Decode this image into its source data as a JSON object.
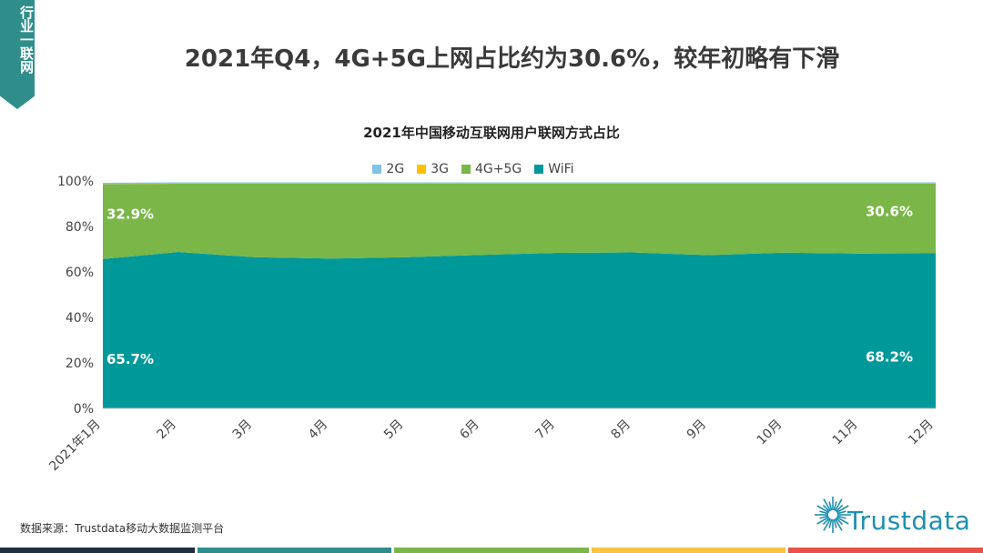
{
  "side_tag": {
    "text": "行业一联网",
    "color": "#2f8e8b"
  },
  "headline": "2021年Q4，4G+5G上网占比约为30.6%，较年初略有下滑",
  "chart_data": {
    "type": "area",
    "stacked": true,
    "title": "2021年中国移动互联网用户联网方式占比",
    "categories": [
      "2021年1月",
      "2月",
      "3月",
      "4月",
      "5月",
      "6月",
      "7月",
      "8月",
      "9月",
      "10月",
      "11月",
      "12月"
    ],
    "series": [
      {
        "name": "WiFi",
        "color": "#00999a",
        "values": [
          65.7,
          68.8,
          66.5,
          65.9,
          66.5,
          67.5,
          68.4,
          68.6,
          67.4,
          68.5,
          68.1,
          68.2
        ]
      },
      {
        "name": "4G+5G",
        "color": "#7ab648",
        "values": [
          32.9,
          30.0,
          32.3,
          32.9,
          32.3,
          31.3,
          30.4,
          30.2,
          31.4,
          30.3,
          30.7,
          30.6
        ]
      },
      {
        "name": "3G",
        "color": "#ffc000",
        "values": [
          0.1,
          0.1,
          0.1,
          0.1,
          0.1,
          0.1,
          0.1,
          0.1,
          0.1,
          0.1,
          0.1,
          0.1
        ]
      },
      {
        "name": "2G",
        "color": "#7fc3e6",
        "values": [
          0.5,
          0.5,
          0.5,
          0.5,
          0.5,
          0.5,
          0.5,
          0.5,
          0.5,
          0.5,
          0.5,
          0.5
        ]
      }
    ],
    "legend_order": [
      "2G",
      "3G",
      "4G+5G",
      "WiFi"
    ],
    "ylim": [
      0,
      100
    ],
    "yticks": [
      "0%",
      "20%",
      "40%",
      "60%",
      "80%",
      "100%"
    ],
    "data_labels": [
      {
        "series": "WiFi",
        "category": "2021年1月",
        "text": "65.7%"
      },
      {
        "series": "4G+5G",
        "category": "2021年1月",
        "text": "32.9%"
      },
      {
        "series": "WiFi",
        "category": "12月",
        "text": "68.2%"
      },
      {
        "series": "4G+5G",
        "category": "12月",
        "text": "30.6%"
      }
    ],
    "grid": false,
    "legend_position": "top"
  },
  "source": "数据来源：Trustdata移动大数据监测平台",
  "logo": {
    "text": "Trustdata",
    "icon": "sunburst-icon",
    "color": "#1f8fb0"
  },
  "bottom_bar_colors": [
    "#1f2f3f",
    "#2f8e8b",
    "#7ab648",
    "#f6c342",
    "#e8524a"
  ]
}
